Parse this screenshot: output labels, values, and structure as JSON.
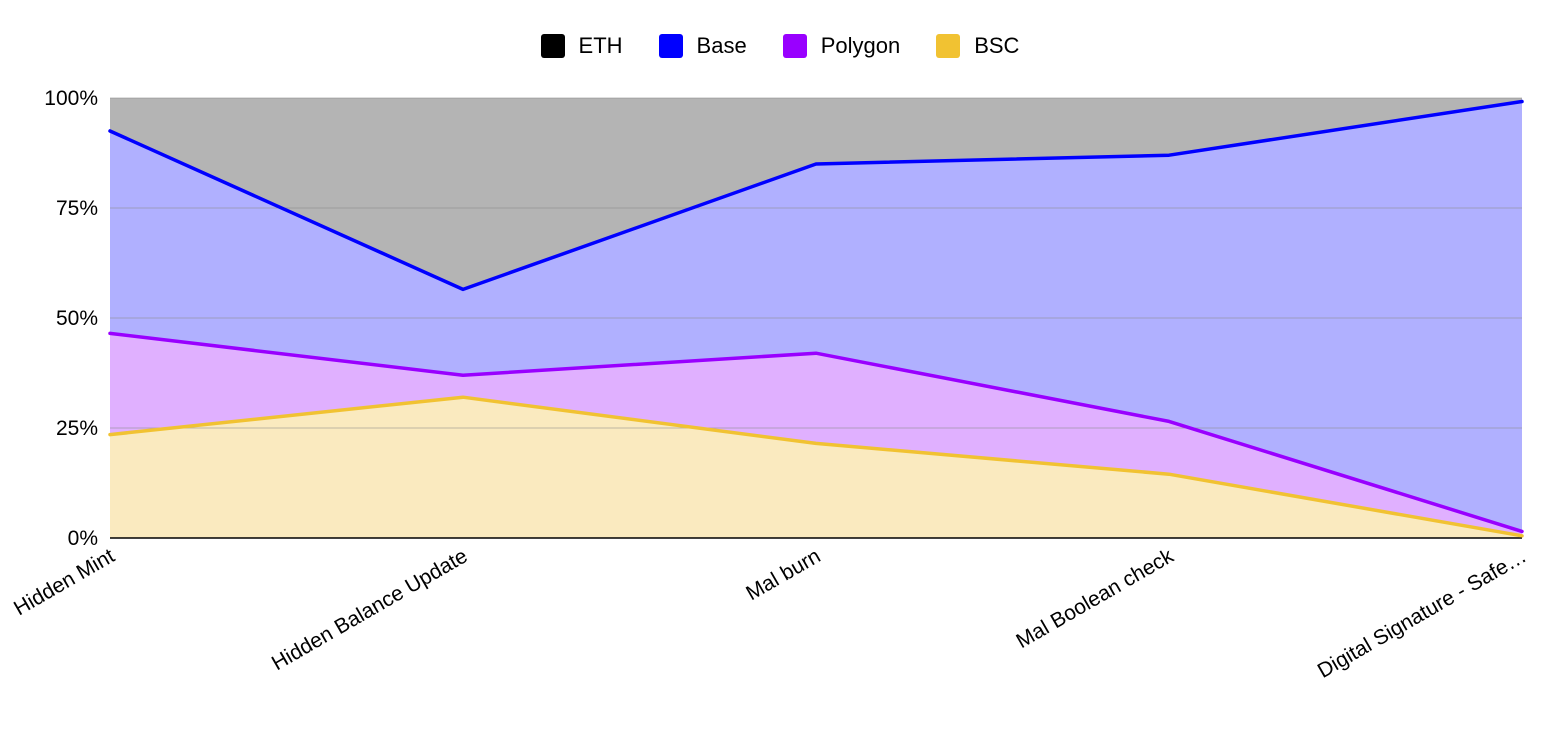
{
  "chart_data": {
    "type": "area",
    "stacked": true,
    "normalized": true,
    "categories": [
      "Hidden Mint",
      "Hidden Balance Update",
      "Mal burn",
      "Mal Boolean check",
      "Digital Signature - Safe…"
    ],
    "series": [
      {
        "name": "BSC",
        "color": "#f1c232",
        "fill": "#faeabf",
        "values": [
          23.5,
          32,
          21.5,
          14.5,
          0.5
        ]
      },
      {
        "name": "Polygon",
        "color": "#9900ff",
        "fill": "#e0b0ff",
        "values": [
          23,
          5,
          20.5,
          12,
          1
        ]
      },
      {
        "name": "Base",
        "color": "#0000ff",
        "fill": "#b0b0ff",
        "values": [
          46,
          19.5,
          43,
          60.5,
          97.7
        ]
      },
      {
        "name": "ETH",
        "color": "#000000",
        "fill": "#b4b4b4",
        "values": [
          7.5,
          43.5,
          15,
          13,
          0.8
        ]
      }
    ],
    "legend_order": [
      "ETH",
      "Base",
      "Polygon",
      "BSC"
    ],
    "y_tick_labels": [
      "0%",
      "25%",
      "50%",
      "75%",
      "100%"
    ],
    "ylim": [
      0,
      100
    ],
    "legend_position": "top",
    "grid": true
  }
}
